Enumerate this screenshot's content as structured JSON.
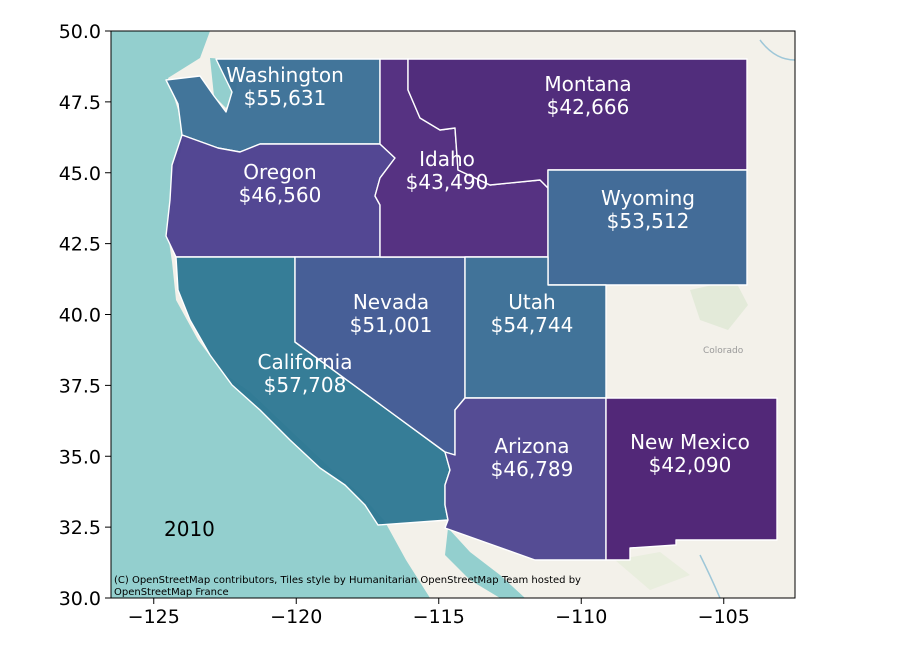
{
  "chart_data": {
    "type": "choropleth",
    "xlim": [
      -126.5,
      -102.5
    ],
    "ylim": [
      30.0,
      50.0
    ],
    "x_ticks": [
      -125,
      -120,
      -115,
      -110,
      -105
    ],
    "y_ticks": [
      30.0,
      32.5,
      35.0,
      37.5,
      40.0,
      42.5,
      45.0,
      47.5,
      50.0
    ],
    "x_tick_labels": [
      "−125",
      "−120",
      "−115",
      "−110",
      "−105"
    ],
    "y_tick_labels": [
      "30.0",
      "32.5",
      "35.0",
      "37.5",
      "40.0",
      "42.5",
      "45.0",
      "47.5",
      "50.0"
    ],
    "year": "2010",
    "states": [
      {
        "name": "Washington",
        "value": 55631,
        "label_value": "$55,631",
        "color": "#3a6f96",
        "label_lon": -121.5,
        "label_lat": 47.4
      },
      {
        "name": "Oregon",
        "value": 46560,
        "label_value": "$46,560",
        "color": "#4c3f8f",
        "label_lon": -120.3,
        "label_lat": 44.0
      },
      {
        "name": "California",
        "value": 57708,
        "label_value": "$57,708",
        "color": "#2e7893",
        "label_lon": -119.5,
        "label_lat": 37.9
      },
      {
        "name": "Nevada",
        "value": 51001,
        "label_value": "$51,001",
        "color": "#3f5893",
        "label_lon": -116.5,
        "label_lat": 39.9
      },
      {
        "name": "Idaho",
        "value": 43490,
        "label_value": "$43,490",
        "color": "#4f2a7d",
        "label_lon": -114.9,
        "label_lat": 44.9
      },
      {
        "name": "Montana",
        "value": 42666,
        "label_value": "$42,666",
        "color": "#4a2477",
        "label_lon": -109.5,
        "label_lat": 47.8
      },
      {
        "name": "Wyoming",
        "value": 53512,
        "label_value": "$53,512",
        "color": "#3b6694",
        "label_lon": -107.5,
        "label_lat": 43.5
      },
      {
        "name": "Utah",
        "value": 54744,
        "label_value": "$54,744",
        "color": "#396d95",
        "label_lon": -111.7,
        "label_lat": 39.9
      },
      {
        "name": "Arizona",
        "value": 46789,
        "label_value": "$46,789",
        "color": "#4e4590",
        "label_lon": -111.7,
        "label_lat": 34.9
      },
      {
        "name": "New Mexico",
        "value": 42090,
        "label_value": "$42,090",
        "color": "#4b1f72",
        "label_lon": -106.1,
        "label_lat": 35.1
      }
    ]
  },
  "attribution": {
    "line1": "(C) OpenStreetMap contributors, Tiles style by Humanitarian OpenStreetMap Team hosted by",
    "line2": "OpenStreetMap France"
  },
  "basemap_labels": {
    "colorado": "Colorado"
  },
  "colors": {
    "ocean": "#93cfce",
    "land": "#f3f1ea",
    "state_border": "#ffffff"
  }
}
